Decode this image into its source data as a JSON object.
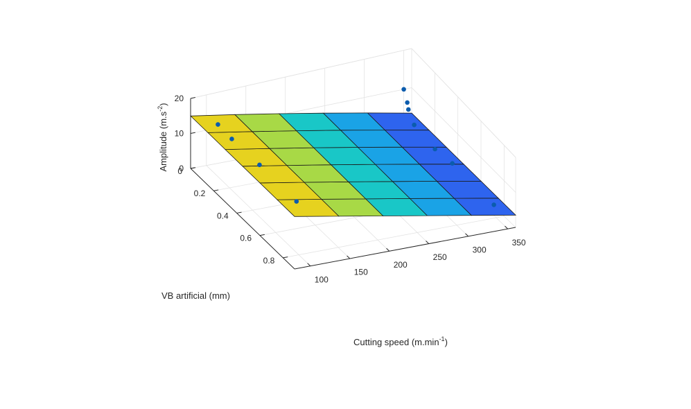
{
  "chart_data": {
    "type": "surface3d",
    "title": "",
    "xlabel": "Cutting speed (m.min",
    "xlabel_sup": "-1",
    "xlabel_end": ")",
    "ylabel": "VB artificial (mm)",
    "zlabel": "Amplitude (m.s",
    "zlabel_sup": "-2",
    "zlabel_end": ")",
    "xlim": [
      80,
      360
    ],
    "ylim": [
      0,
      0.9
    ],
    "zlim": [
      0,
      20
    ],
    "x_ticks": [
      "100",
      "150",
      "200",
      "250",
      "300",
      "350"
    ],
    "y_ticks": [
      "0",
      "0.2",
      "0.4",
      "0.6",
      "0.8"
    ],
    "z_ticks": [
      "0",
      "10",
      "20"
    ],
    "grid": true,
    "surface_x": [
      80,
      136,
      192,
      248,
      304,
      360
    ],
    "surface_y": [
      0,
      0.15,
      0.3,
      0.45,
      0.6,
      0.75,
      0.9
    ],
    "surface_z": [
      [
        15.0,
        12.7,
        10.4,
        8.1,
        5.8,
        3.5
      ],
      [
        15.0,
        12.7,
        10.4,
        8.1,
        5.8,
        3.5
      ],
      [
        15.0,
        12.7,
        10.4,
        8.1,
        5.8,
        3.5
      ],
      [
        15.0,
        12.7,
        10.4,
        8.1,
        5.8,
        3.5
      ],
      [
        15.0,
        12.7,
        10.4,
        8.1,
        5.8,
        3.5
      ],
      [
        15.0,
        12.7,
        10.4,
        8.1,
        5.8,
        3.5
      ],
      [
        15.0,
        12.7,
        10.4,
        8.1,
        5.8,
        3.5
      ]
    ],
    "points": [
      {
        "x": 100,
        "y": 0.1,
        "z": 14.8
      },
      {
        "x": 100,
        "y": 0.22,
        "z": 14.5
      },
      {
        "x": 100,
        "y": 0.46,
        "z": 14.8
      },
      {
        "x": 100,
        "y": 0.78,
        "z": 14.6
      },
      {
        "x": 350,
        "y": 0.0,
        "z": 10.0
      },
      {
        "x": 350,
        "y": 0.03,
        "z": 7.5
      },
      {
        "x": 350,
        "y": 0.04,
        "z": 6.0
      },
      {
        "x": 350,
        "y": 0.09,
        "z": 3.5
      },
      {
        "x": 350,
        "y": 0.27,
        "z": 2.5
      },
      {
        "x": 350,
        "y": 0.42,
        "z": 3.2
      },
      {
        "x": 350,
        "y": 0.78,
        "z": 3.0
      }
    ],
    "point_color": "#0b5cad",
    "edge_color": "#1a1a1a",
    "axis_color": "#262626",
    "grid_color": "#e3e3e3",
    "colormap": [
      "#fde725",
      "#e6d21f",
      "#a8d946",
      "#3bd17a",
      "#19c7c7",
      "#1aa3e6",
      "#2e64ee",
      "#3a3cf0"
    ]
  }
}
